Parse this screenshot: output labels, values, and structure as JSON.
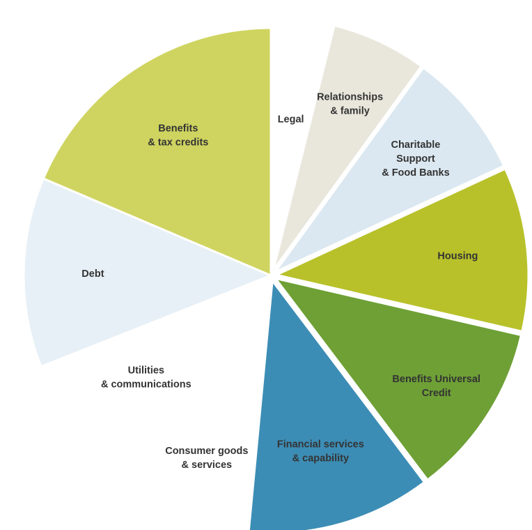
{
  "chart_data": {
    "type": "pie",
    "title": "",
    "start_angle_deg": 0,
    "direction": "clockwise",
    "legend": "none",
    "slices": [
      {
        "id": "legal",
        "label_lines": [
          "Legal"
        ],
        "value": 3.9,
        "color": "#ffffff",
        "explode": 0
      },
      {
        "id": "relationships",
        "label_lines": [
          "Relationships",
          "& family"
        ],
        "value": 6.1,
        "color": "#e9e7dc",
        "explode": 1
      },
      {
        "id": "charitable",
        "label_lines": [
          "Charitable",
          "Support",
          "& Food Banks"
        ],
        "value": 8.1,
        "color": "#dbe8f1",
        "explode": 1
      },
      {
        "id": "housing",
        "label_lines": [
          "Housing"
        ],
        "value": 10.5,
        "color": "#b8c12a",
        "explode": 1
      },
      {
        "id": "universal-credit",
        "label_lines": [
          "Benefits Universal",
          "Credit"
        ],
        "value": 11.1,
        "color": "#6ea035",
        "explode": 1
      },
      {
        "id": "financial",
        "label_lines": [
          "Financial services",
          "& capability"
        ],
        "value": 11.8,
        "color": "#3c8db5",
        "explode": 1
      },
      {
        "id": "consumer",
        "label_lines": [
          "Consumer goods",
          "& services"
        ],
        "value": 7.8,
        "color": "#ffffff",
        "explode": 0
      },
      {
        "id": "utilities",
        "label_lines": [
          "Utilities",
          "& communications"
        ],
        "value": 9.7,
        "color": "#ffffff",
        "explode": 0
      },
      {
        "id": "debt",
        "label_lines": [
          "Debt"
        ],
        "value": 12.4,
        "color": "#e7f0f6",
        "explode": 0
      },
      {
        "id": "benefits-tax-credits",
        "label_lines": [
          "Benefits",
          "& tax credits"
        ],
        "value": 18.6,
        "color": "#cfd460",
        "explode": 0
      }
    ]
  }
}
